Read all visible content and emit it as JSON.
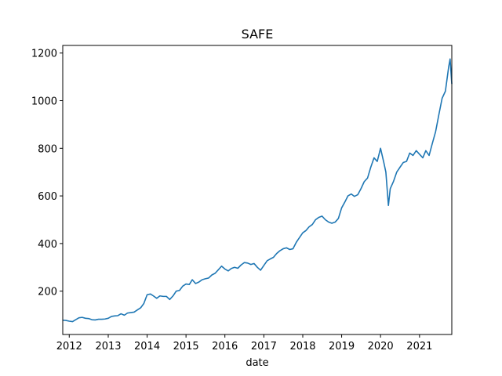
{
  "chart_data": {
    "type": "line",
    "title": "SAFE",
    "xlabel": "date",
    "ylabel": "",
    "x_tick_labels": [
      "2012",
      "2013",
      "2014",
      "2015",
      "2016",
      "2017",
      "2018",
      "2019",
      "2020",
      "2021"
    ],
    "y_ticks": [
      200,
      400,
      600,
      800,
      1000,
      1200
    ],
    "xlim": [
      "2011-11-01",
      "2021-10-31"
    ],
    "ylim": [
      18,
      1232
    ],
    "grid": false,
    "legend": "none",
    "series": [
      {
        "color": "#1f77b4",
        "points": [
          [
            "2011-11-01",
            78
          ],
          [
            "2011-12-01",
            77
          ],
          [
            "2012-01-01",
            74
          ],
          [
            "2012-02-01",
            72
          ],
          [
            "2012-03-01",
            80
          ],
          [
            "2012-04-01",
            88
          ],
          [
            "2012-05-01",
            90
          ],
          [
            "2012-06-01",
            86
          ],
          [
            "2012-07-01",
            85
          ],
          [
            "2012-08-01",
            80
          ],
          [
            "2012-09-01",
            79
          ],
          [
            "2012-10-01",
            82
          ],
          [
            "2012-11-01",
            82
          ],
          [
            "2012-12-01",
            83
          ],
          [
            "2013-01-01",
            86
          ],
          [
            "2013-02-01",
            94
          ],
          [
            "2013-03-01",
            96
          ],
          [
            "2013-04-01",
            97
          ],
          [
            "2013-05-01",
            105
          ],
          [
            "2013-06-01",
            99
          ],
          [
            "2013-07-01",
            108
          ],
          [
            "2013-08-01",
            110
          ],
          [
            "2013-09-01",
            112
          ],
          [
            "2013-10-01",
            121
          ],
          [
            "2013-11-01",
            130
          ],
          [
            "2013-12-01",
            148
          ],
          [
            "2014-01-01",
            185
          ],
          [
            "2014-02-01",
            188
          ],
          [
            "2014-03-01",
            180
          ],
          [
            "2014-04-01",
            170
          ],
          [
            "2014-05-01",
            180
          ],
          [
            "2014-06-01",
            178
          ],
          [
            "2014-07-01",
            178
          ],
          [
            "2014-08-01",
            165
          ],
          [
            "2014-09-01",
            180
          ],
          [
            "2014-10-01",
            200
          ],
          [
            "2014-11-01",
            203
          ],
          [
            "2014-12-01",
            221
          ],
          [
            "2015-01-01",
            230
          ],
          [
            "2015-02-01",
            228
          ],
          [
            "2015-03-01",
            248
          ],
          [
            "2015-04-01",
            232
          ],
          [
            "2015-05-01",
            238
          ],
          [
            "2015-06-01",
            248
          ],
          [
            "2015-07-01",
            252
          ],
          [
            "2015-08-01",
            255
          ],
          [
            "2015-09-01",
            268
          ],
          [
            "2015-10-01",
            275
          ],
          [
            "2015-11-01",
            290
          ],
          [
            "2015-12-01",
            305
          ],
          [
            "2016-01-01",
            293
          ],
          [
            "2016-02-01",
            285
          ],
          [
            "2016-03-01",
            295
          ],
          [
            "2016-04-01",
            300
          ],
          [
            "2016-05-01",
            296
          ],
          [
            "2016-06-01",
            310
          ],
          [
            "2016-07-01",
            320
          ],
          [
            "2016-08-01",
            318
          ],
          [
            "2016-09-01",
            312
          ],
          [
            "2016-10-01",
            316
          ],
          [
            "2016-11-01",
            300
          ],
          [
            "2016-12-01",
            288
          ],
          [
            "2017-01-01",
            308
          ],
          [
            "2017-02-01",
            328
          ],
          [
            "2017-03-01",
            335
          ],
          [
            "2017-04-01",
            342
          ],
          [
            "2017-05-01",
            358
          ],
          [
            "2017-06-01",
            370
          ],
          [
            "2017-07-01",
            378
          ],
          [
            "2017-08-01",
            382
          ],
          [
            "2017-09-01",
            375
          ],
          [
            "2017-10-01",
            378
          ],
          [
            "2017-11-01",
            405
          ],
          [
            "2017-12-01",
            425
          ],
          [
            "2018-01-01",
            445
          ],
          [
            "2018-02-01",
            455
          ],
          [
            "2018-03-01",
            470
          ],
          [
            "2018-04-01",
            480
          ],
          [
            "2018-05-01",
            500
          ],
          [
            "2018-06-01",
            510
          ],
          [
            "2018-07-01",
            515
          ],
          [
            "2018-08-01",
            500
          ],
          [
            "2018-09-01",
            490
          ],
          [
            "2018-10-01",
            485
          ],
          [
            "2018-11-01",
            490
          ],
          [
            "2018-12-01",
            505
          ],
          [
            "2019-01-01",
            550
          ],
          [
            "2019-02-01",
            575
          ],
          [
            "2019-03-01",
            600
          ],
          [
            "2019-04-01",
            608
          ],
          [
            "2019-05-01",
            598
          ],
          [
            "2019-06-01",
            605
          ],
          [
            "2019-07-01",
            630
          ],
          [
            "2019-08-01",
            660
          ],
          [
            "2019-09-01",
            675
          ],
          [
            "2019-10-01",
            720
          ],
          [
            "2019-11-01",
            760
          ],
          [
            "2019-12-01",
            745
          ],
          [
            "2020-01-01",
            800
          ],
          [
            "2020-02-01",
            740
          ],
          [
            "2020-02-20",
            700
          ],
          [
            "2020-03-15",
            560
          ],
          [
            "2020-04-01",
            630
          ],
          [
            "2020-05-01",
            660
          ],
          [
            "2020-06-01",
            700
          ],
          [
            "2020-07-01",
            720
          ],
          [
            "2020-08-01",
            740
          ],
          [
            "2020-09-01",
            745
          ],
          [
            "2020-10-01",
            780
          ],
          [
            "2020-11-01",
            770
          ],
          [
            "2020-12-01",
            790
          ],
          [
            "2021-01-01",
            775
          ],
          [
            "2021-02-01",
            760
          ],
          [
            "2021-03-01",
            790
          ],
          [
            "2021-04-01",
            770
          ],
          [
            "2021-05-01",
            820
          ],
          [
            "2021-06-01",
            870
          ],
          [
            "2021-07-01",
            940
          ],
          [
            "2021-08-01",
            1010
          ],
          [
            "2021-09-01",
            1040
          ],
          [
            "2021-10-01",
            1140
          ],
          [
            "2021-10-15",
            1175
          ],
          [
            "2021-10-31",
            1070
          ]
        ]
      }
    ]
  }
}
